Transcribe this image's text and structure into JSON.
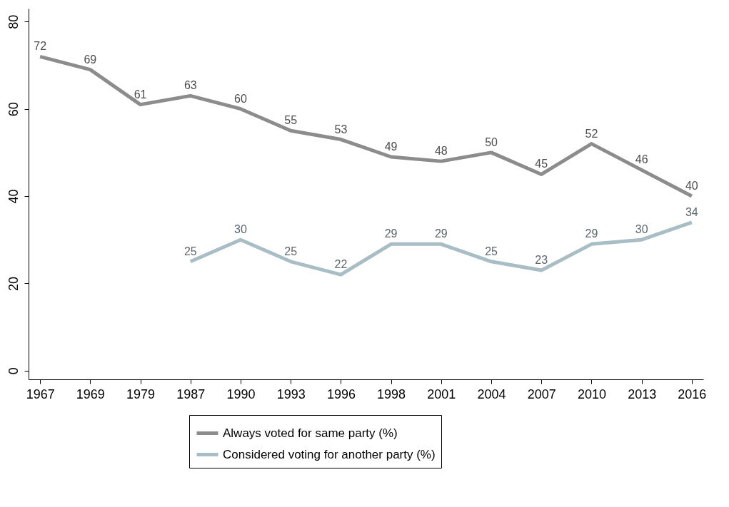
{
  "chart_data": {
    "type": "line",
    "categories": [
      "1967",
      "1969",
      "1979",
      "1987",
      "1990",
      "1993",
      "1996",
      "1998",
      "2001",
      "2004",
      "2007",
      "2010",
      "2013",
      "2016"
    ],
    "series": [
      {
        "name": "Always voted for same party (%)",
        "color": "#8c8c8c",
        "values": [
          72,
          69,
          61,
          63,
          60,
          55,
          53,
          49,
          48,
          50,
          45,
          52,
          46,
          40
        ]
      },
      {
        "name": "Considered voting for another party (%)",
        "color": "#a9bdc5",
        "values": [
          null,
          null,
          null,
          25,
          30,
          25,
          22,
          29,
          29,
          25,
          23,
          29,
          30,
          34
        ]
      }
    ],
    "ylim": [
      -2,
      83
    ],
    "yticks": [
      0,
      20,
      40,
      60,
      80
    ],
    "grid": false,
    "legend": "bottom",
    "data_labels": true,
    "marker": "none",
    "line_style": "solid"
  }
}
